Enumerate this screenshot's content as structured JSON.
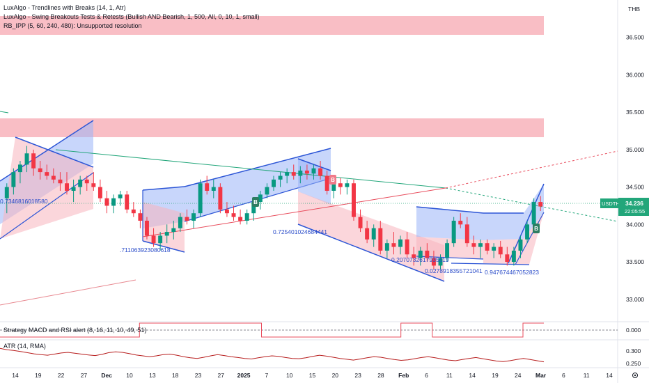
{
  "chart_data": {
    "type": "candlestick",
    "currency": "THB",
    "symbol": "USDTHB",
    "last_price": "34.236",
    "countdown": "22:05:55",
    "indicators": [
      "LuxAlgo - Trendlines with Breaks (14, 1, Atr)",
      "LuxAlgo - Swing Breakouts Tests & Retests (Bullish AND Bearish, 1, 500, All, 0, 10, 1, small)",
      "RB_IPP (5, 60, 240, 480): Unsupported resolution"
    ],
    "y_ticks": [
      "36.500",
      "36.000",
      "35.500",
      "35.000",
      "34.500",
      "34.000",
      "33.500",
      "33.000"
    ],
    "x_ticks": [
      "14",
      "19",
      "22",
      "27",
      "Dec",
      "10",
      "13",
      "18",
      "23",
      "27",
      "2025",
      "7",
      "10",
      "15",
      "20",
      "23",
      "28",
      "Feb",
      "6",
      "11",
      "14",
      "19",
      "24",
      "Mar",
      "6",
      "11",
      "14"
    ],
    "ylim": [
      32.7,
      37.0
    ],
    "candles": [
      [
        34.35,
        34.55,
        34.15,
        34.5
      ],
      [
        34.5,
        34.75,
        34.4,
        34.7
      ],
      [
        34.7,
        34.85,
        34.55,
        34.8
      ],
      [
        34.8,
        35.05,
        34.7,
        34.95
      ],
      [
        34.95,
        35.0,
        34.65,
        34.75
      ],
      [
        34.75,
        34.85,
        34.6,
        34.7
      ],
      [
        34.7,
        34.8,
        34.6,
        34.65
      ],
      [
        34.65,
        34.75,
        34.55,
        34.6
      ],
      [
        34.6,
        34.7,
        34.45,
        34.55
      ],
      [
        34.55,
        34.7,
        34.4,
        34.45
      ],
      [
        34.45,
        34.6,
        34.3,
        34.5
      ],
      [
        34.5,
        34.65,
        34.4,
        34.6
      ],
      [
        34.6,
        34.65,
        34.45,
        34.55
      ],
      [
        34.55,
        34.7,
        34.45,
        34.5
      ],
      [
        34.5,
        34.6,
        34.3,
        34.35
      ],
      [
        34.35,
        34.45,
        34.15,
        34.25
      ],
      [
        34.25,
        34.4,
        34.15,
        34.35
      ],
      [
        34.35,
        34.45,
        34.25,
        34.4
      ],
      [
        34.4,
        34.45,
        34.15,
        34.2
      ],
      [
        34.2,
        34.3,
        34.1,
        34.15
      ],
      [
        34.15,
        34.2,
        33.95,
        34.05
      ],
      [
        34.05,
        34.1,
        33.8,
        33.85
      ],
      [
        33.85,
        33.95,
        33.7,
        33.75
      ],
      [
        33.75,
        33.9,
        33.65,
        33.85
      ],
      [
        33.85,
        34.0,
        33.75,
        33.9
      ],
      [
        33.9,
        34.05,
        33.8,
        33.95
      ],
      [
        33.95,
        34.15,
        33.9,
        34.1
      ],
      [
        34.1,
        34.2,
        34.0,
        34.05
      ],
      [
        34.05,
        34.2,
        33.95,
        34.15
      ],
      [
        34.15,
        34.6,
        34.1,
        34.55
      ],
      [
        34.55,
        34.65,
        34.4,
        34.45
      ],
      [
        34.45,
        34.6,
        34.35,
        34.5
      ],
      [
        34.5,
        34.55,
        34.15,
        34.2
      ],
      [
        34.2,
        34.3,
        34.1,
        34.15
      ],
      [
        34.15,
        34.25,
        34.05,
        34.1
      ],
      [
        34.1,
        34.2,
        34.0,
        34.05
      ],
      [
        34.05,
        34.2,
        34.0,
        34.15
      ],
      [
        34.15,
        34.35,
        34.05,
        34.3
      ],
      [
        34.3,
        34.45,
        34.2,
        34.4
      ],
      [
        34.4,
        34.55,
        34.35,
        34.5
      ],
      [
        34.5,
        34.65,
        34.45,
        34.6
      ],
      [
        34.6,
        34.7,
        34.5,
        34.65
      ],
      [
        34.65,
        34.75,
        34.55,
        34.7
      ],
      [
        34.7,
        34.8,
        34.6,
        34.65
      ],
      [
        34.65,
        34.78,
        34.55,
        34.72
      ],
      [
        34.72,
        34.8,
        34.6,
        34.68
      ],
      [
        34.68,
        34.8,
        34.6,
        34.75
      ],
      [
        34.75,
        34.85,
        34.6,
        34.65
      ],
      [
        34.65,
        34.72,
        34.4,
        34.45
      ],
      [
        34.45,
        34.6,
        34.35,
        34.55
      ],
      [
        34.55,
        34.62,
        34.4,
        34.5
      ],
      [
        34.5,
        34.6,
        34.4,
        34.55
      ],
      [
        34.55,
        34.6,
        34.05,
        34.1
      ],
      [
        34.1,
        34.2,
        33.9,
        33.95
      ],
      [
        33.95,
        34.05,
        33.75,
        33.8
      ],
      [
        33.8,
        34.0,
        33.7,
        33.95
      ],
      [
        33.95,
        34.05,
        33.6,
        33.65
      ],
      [
        33.65,
        33.8,
        33.55,
        33.75
      ],
      [
        33.75,
        33.9,
        33.6,
        33.7
      ],
      [
        33.7,
        33.85,
        33.6,
        33.8
      ],
      [
        33.8,
        33.9,
        33.55,
        33.6
      ],
      [
        33.6,
        33.7,
        33.45,
        33.55
      ],
      [
        33.55,
        33.7,
        33.45,
        33.65
      ],
      [
        33.65,
        33.75,
        33.5,
        33.55
      ],
      [
        33.55,
        33.65,
        33.4,
        33.45
      ],
      [
        33.45,
        33.6,
        33.4,
        33.55
      ],
      [
        33.55,
        33.8,
        33.5,
        33.75
      ],
      [
        33.75,
        34.1,
        33.7,
        34.05
      ],
      [
        34.05,
        34.15,
        33.95,
        34.0
      ],
      [
        34.0,
        34.1,
        33.7,
        33.75
      ],
      [
        33.75,
        33.85,
        33.6,
        33.7
      ],
      [
        33.7,
        33.8,
        33.55,
        33.75
      ],
      [
        33.75,
        33.8,
        33.6,
        33.65
      ],
      [
        33.65,
        33.75,
        33.55,
        33.7
      ],
      [
        33.7,
        33.78,
        33.55,
        33.6
      ],
      [
        33.6,
        33.7,
        33.45,
        33.5
      ],
      [
        33.5,
        33.7,
        33.45,
        33.65
      ],
      [
        33.65,
        33.85,
        33.55,
        33.8
      ],
      [
        33.8,
        34.05,
        33.75,
        34.0
      ],
      [
        34.0,
        34.35,
        33.95,
        34.3
      ],
      [
        34.3,
        34.38,
        34.18,
        34.24
      ]
    ],
    "trendline_labels": [
      "0.7346816018580",
      ".711063923080618",
      "0.725401024684441",
      "0.2070732617935619",
      "0.0278918355721041",
      "0.947674467052823"
    ],
    "signals": [
      {
        "label": "B",
        "type": "bullish"
      },
      {
        "label": "B",
        "type": "bearish"
      },
      {
        "label": "B",
        "type": "bullish"
      }
    ],
    "strategy": {
      "label": "Strategy MACD and RSI alert (8, 16, 11, 10, 49, 51)",
      "y_tick": "0.000",
      "states": [
        0,
        0,
        0,
        0,
        0,
        0,
        0,
        0,
        0,
        0,
        0,
        0,
        0,
        0,
        0,
        0,
        0,
        0,
        0,
        0,
        0,
        0,
        0,
        0,
        0,
        0,
        0,
        0,
        0,
        0,
        0,
        0,
        0,
        0,
        0,
        0,
        0,
        0,
        0,
        0,
        1,
        1,
        1,
        1,
        1,
        1,
        1,
        1,
        1,
        1,
        1,
        1,
        1,
        1,
        1,
        1,
        1,
        1,
        1,
        1,
        1,
        1,
        1,
        1,
        1,
        1,
        1,
        1,
        1,
        1,
        1,
        1,
        1,
        1,
        1,
        0,
        0,
        0,
        0,
        0,
        0,
        0,
        0,
        0,
        0,
        0,
        0,
        0,
        0,
        0,
        0,
        0,
        0,
        0,
        0,
        0,
        0,
        0,
        0,
        0,
        0,
        0,
        0,
        0,
        0,
        0,
        0,
        0,
        0,
        0,
        0,
        0,
        0,
        0,
        0,
        1,
        1,
        1,
        1,
        1,
        1,
        1,
        1,
        1,
        0,
        0,
        0,
        0,
        0,
        0,
        0,
        0,
        0,
        0,
        0,
        0,
        0,
        0,
        0,
        0,
        0,
        0,
        0,
        0,
        0,
        0,
        0,
        0,
        0,
        0,
        1,
        1,
        1,
        1,
        1,
        1
      ]
    },
    "atr": {
      "label": "ATR (14, RMA)",
      "y_ticks": [
        "0.300",
        "0.250"
      ],
      "ylim": [
        0.24,
        0.33
      ],
      "values": [
        0.305,
        0.3,
        0.298,
        0.294,
        0.29,
        0.286,
        0.283,
        0.281,
        0.285,
        0.289,
        0.291,
        0.288,
        0.285,
        0.282,
        0.28,
        0.284,
        0.29,
        0.293,
        0.291,
        0.287,
        0.282,
        0.279,
        0.276,
        0.279,
        0.283,
        0.285,
        0.281,
        0.276,
        0.272,
        0.27,
        0.274,
        0.279,
        0.283,
        0.28,
        0.276,
        0.273,
        0.27,
        0.268,
        0.272,
        0.276,
        0.279,
        0.277,
        0.273,
        0.27,
        0.269,
        0.272,
        0.277,
        0.281,
        0.278,
        0.274,
        0.27,
        0.267,
        0.264,
        0.268,
        0.272,
        0.276,
        0.274,
        0.27,
        0.266,
        0.263,
        0.265,
        0.269,
        0.273,
        0.276,
        0.272,
        0.268,
        0.264,
        0.262,
        0.266,
        0.27,
        0.273,
        0.269,
        0.265,
        0.261,
        0.259,
        0.262,
        0.266,
        0.27,
        0.266,
        0.262,
        0.258
      ]
    }
  }
}
